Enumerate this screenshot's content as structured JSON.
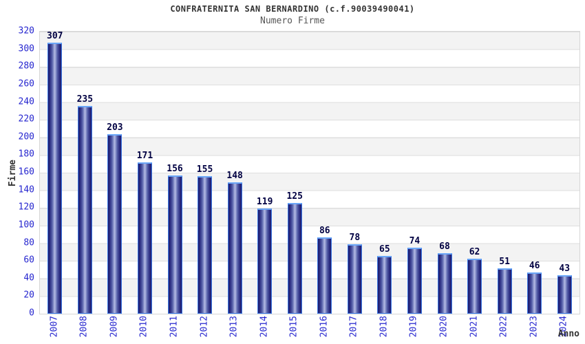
{
  "title": "CONFRATERNITA SAN BERNARDINO (c.f.90039490041)",
  "subtitle": "Numero Firme",
  "chart_data": {
    "type": "bar",
    "title": "CONFRATERNITA SAN BERNARDINO (c.f.90039490041)",
    "subtitle": "Numero Firme",
    "categories": [
      "2007",
      "2008",
      "2009",
      "2010",
      "2011",
      "2012",
      "2013",
      "2014",
      "2015",
      "2016",
      "2017",
      "2018",
      "2019",
      "2020",
      "2021",
      "2022",
      "2023",
      "2024"
    ],
    "values": [
      307,
      235,
      203,
      171,
      156,
      155,
      148,
      119,
      125,
      86,
      78,
      65,
      74,
      68,
      62,
      51,
      46,
      43
    ],
    "xlabel": "Anno",
    "ylabel": "Firme",
    "ylim": [
      0,
      320
    ],
    "ytick_step": 20,
    "grid": "horizontal-bands",
    "value_labels": true,
    "legend": "none"
  },
  "colors": {
    "axis_tick_label": "#2626cf",
    "value_label": "#000042",
    "bar_edge_dark": "#1c1c6e",
    "bar_center_light": "#b6bde4",
    "bar_border": "#3d7be8",
    "band_gray": "#f3f3f3",
    "band_white": "#ffffff",
    "plot_border": "#d6d6d6",
    "title_color": "#333333",
    "subtitle_color": "#555555"
  }
}
